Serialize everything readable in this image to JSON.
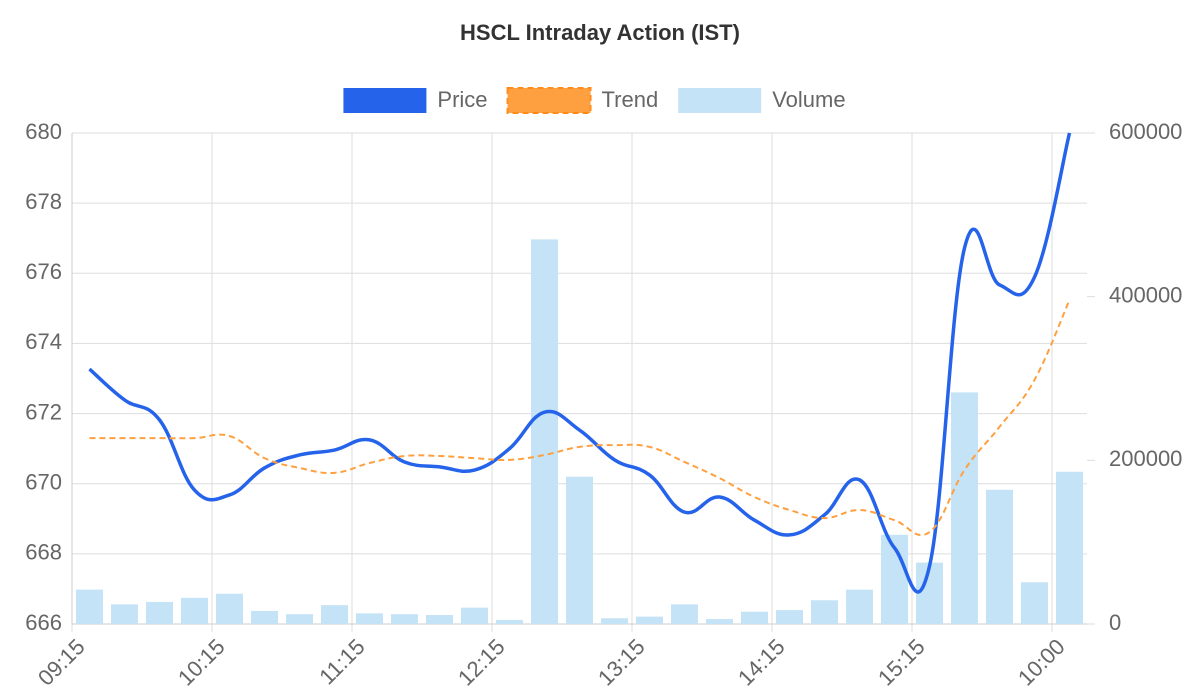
{
  "chart_data": {
    "type": "combo",
    "title": "HSCL Intraday Action (IST)",
    "categories": [
      "09:15",
      null,
      null,
      null,
      "10:15",
      null,
      null,
      null,
      "11:15",
      null,
      null,
      null,
      "12:15",
      null,
      null,
      null,
      "13:15",
      null,
      null,
      null,
      "14:15",
      null,
      null,
      null,
      "15:15",
      null,
      null,
      null,
      "10:00"
    ],
    "series": [
      {
        "name": "Price",
        "type": "line",
        "color": "#2563eb",
        "axis": "y",
        "values": [
          673.27,
          672.39,
          671.82,
          669.82,
          669.68,
          670.45,
          670.82,
          670.96,
          671.25,
          670.62,
          670.48,
          670.39,
          671.0,
          672.04,
          671.53,
          670.68,
          670.25,
          669.19,
          669.62,
          668.96,
          668.54,
          669.11,
          670.11,
          668.17,
          667.65,
          676.72,
          675.67,
          675.89,
          680.0
        ]
      },
      {
        "name": "Trend",
        "type": "line",
        "dashed": true,
        "color": "#ffa040",
        "axis": "y",
        "values": [
          671.3,
          671.3,
          671.3,
          671.3,
          671.36,
          670.73,
          670.45,
          670.31,
          670.59,
          670.79,
          670.79,
          670.73,
          670.68,
          670.82,
          671.05,
          671.1,
          671.05,
          670.62,
          670.16,
          669.62,
          669.25,
          669.02,
          669.25,
          668.96,
          668.62,
          670.39,
          671.62,
          672.96,
          675.24
        ]
      },
      {
        "name": "Volume",
        "type": "bar",
        "color": "#c4e3f7",
        "axis": "y2",
        "values": [
          42000,
          24000,
          27000,
          32000,
          37000,
          16000,
          12000,
          23000,
          13000,
          12000,
          11000,
          20000,
          5000,
          470000,
          180000,
          7000,
          9000,
          24000,
          6000,
          15000,
          17000,
          29000,
          42000,
          109000,
          75000,
          283000,
          164000,
          51000,
          186000
        ]
      }
    ],
    "ylim": [
      666,
      680
    ],
    "yticks": [
      666,
      668,
      670,
      672,
      674,
      676,
      678,
      680
    ],
    "y2lim": [
      0,
      600000
    ],
    "y2ticks": [
      0,
      200000,
      400000,
      600000
    ],
    "grid": true,
    "legend": "top"
  }
}
